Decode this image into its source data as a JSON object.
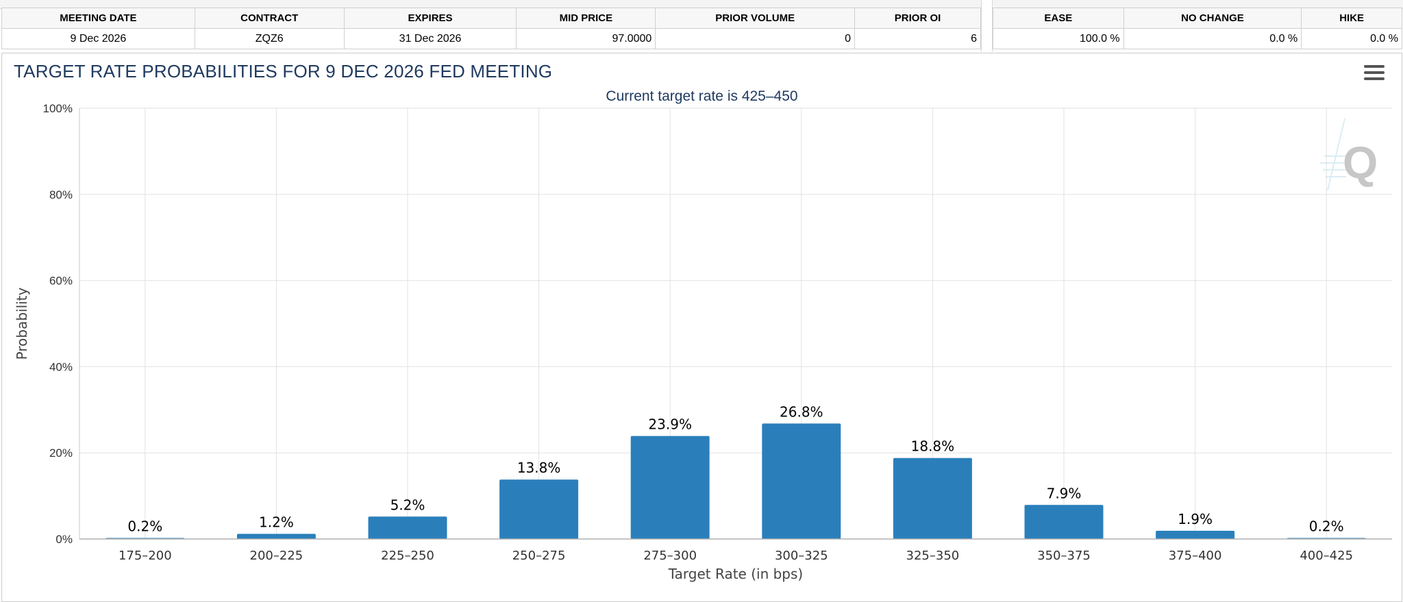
{
  "meeting_table": {
    "headers": [
      "MEETING DATE",
      "CONTRACT",
      "EXPIRES",
      "MID PRICE",
      "PRIOR VOLUME",
      "PRIOR OI"
    ],
    "row": [
      "9 Dec 2026",
      "ZQZ6",
      "31 Dec 2026",
      "97.0000",
      "0",
      "6"
    ]
  },
  "probability_table": {
    "headers": [
      "EASE",
      "NO CHANGE",
      "HIKE"
    ],
    "row": [
      "100.0 %",
      "0.0 %",
      "0.0 %"
    ]
  },
  "chart": {
    "menu_icon": "hamburger-menu-icon",
    "watermark_icon": "q-logo-icon",
    "bar_color": "#2a7fbb"
  },
  "chart_data": {
    "type": "bar",
    "title": "TARGET RATE PROBABILITIES FOR 9 DEC 2026 FED MEETING",
    "subtitle": "Current target rate is 425–450",
    "xlabel": "Target Rate (in bps)",
    "ylabel": "Probability",
    "ylim": [
      0,
      100
    ],
    "yticks": [
      "0%",
      "20%",
      "40%",
      "60%",
      "80%",
      "100%"
    ],
    "categories": [
      "175–200",
      "200–225",
      "225–250",
      "250–275",
      "275–300",
      "300–325",
      "325–350",
      "350–375",
      "375–400",
      "400–425"
    ],
    "values": [
      0.2,
      1.2,
      5.2,
      13.8,
      23.9,
      26.8,
      18.8,
      7.9,
      1.9,
      0.2
    ],
    "labels": [
      "0.2%",
      "1.2%",
      "5.2%",
      "13.8%",
      "23.9%",
      "26.8%",
      "18.8%",
      "7.9%",
      "1.9%",
      "0.2%"
    ],
    "grid": true,
    "legend": "none"
  }
}
